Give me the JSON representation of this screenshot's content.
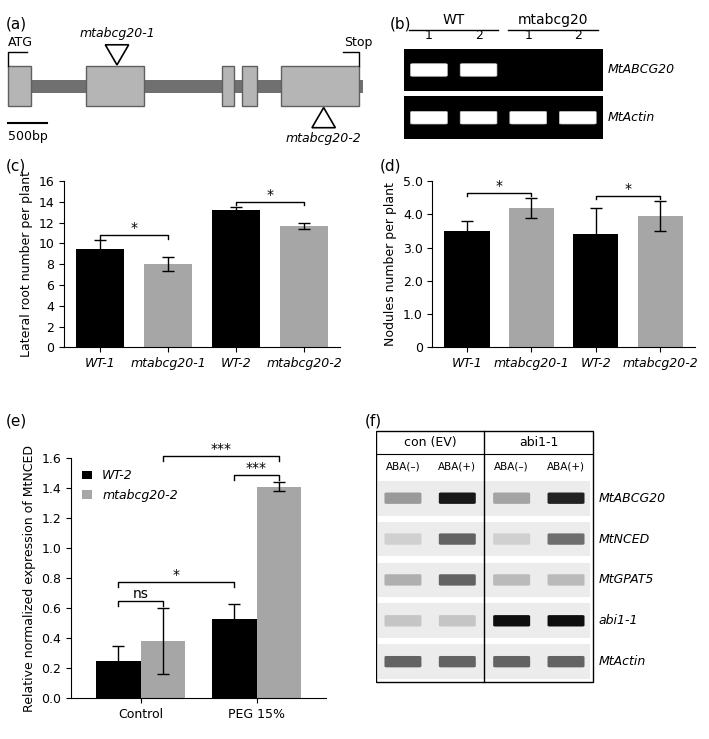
{
  "gene_diagram": {
    "label": "(a)",
    "start": "ATG",
    "end": "Stop",
    "scale_bar": "500bp",
    "insertions": [
      {
        "name": "mtabcg20-1",
        "side": "top"
      },
      {
        "name": "mtabcg20-2",
        "side": "bottom"
      }
    ]
  },
  "gel_b": {
    "label": "(b)",
    "groups": [
      {
        "name": "WT",
        "lanes": [
          "1",
          "2"
        ]
      },
      {
        "name": "mtabcg20",
        "lanes": [
          "1",
          "2"
        ]
      }
    ],
    "rows": [
      {
        "name": "MtABCG20",
        "bands": [
          true,
          true,
          false,
          false
        ]
      },
      {
        "name": "MtActin",
        "bands": [
          true,
          true,
          true,
          true
        ]
      }
    ]
  },
  "chart_data": [
    {
      "label": "(c)",
      "type": "bar",
      "categories": [
        "WT-1",
        "mtabcg20-1",
        "WT-2",
        "mtabcg20-2"
      ],
      "values": [
        9.5,
        8.0,
        13.2,
        11.7
      ],
      "errors": [
        0.8,
        0.7,
        0.3,
        0.3
      ],
      "colors": [
        "#000000",
        "#a6a6a6",
        "#000000",
        "#a6a6a6"
      ],
      "y_label": "Lateral root number per plant",
      "ylim": [
        0,
        16
      ],
      "yticks": [
        0,
        2,
        4,
        6,
        8,
        10,
        12,
        14,
        16
      ],
      "significance": [
        {
          "between": [
            "WT-1",
            "mtabcg20-1"
          ],
          "label": "*"
        },
        {
          "between": [
            "WT-2",
            "mtabcg20-2"
          ],
          "label": "*"
        }
      ]
    },
    {
      "label": "(d)",
      "type": "bar",
      "categories": [
        "WT-1",
        "mtabcg20-1",
        "WT-2",
        "mtabcg20-2"
      ],
      "values": [
        3.5,
        4.2,
        3.4,
        3.95
      ],
      "errors": [
        0.3,
        0.3,
        0.8,
        0.45
      ],
      "colors": [
        "#000000",
        "#a6a6a6",
        "#000000",
        "#a6a6a6"
      ],
      "y_label": "Nodules number per plant",
      "ylim": [
        0,
        5.0
      ],
      "yticks": [
        0,
        1.0,
        2.0,
        3.0,
        4.0,
        5.0
      ],
      "significance": [
        {
          "between": [
            "WT-1",
            "mtabcg20-1"
          ],
          "label": "*"
        },
        {
          "between": [
            "WT-2",
            "mtabcg20-2"
          ],
          "label": "*"
        }
      ]
    },
    {
      "label": "(e)",
      "type": "grouped_bar",
      "categories": [
        "Control",
        "PEG 15%"
      ],
      "series": [
        {
          "name": "WT-2",
          "color": "#000000",
          "values": [
            0.25,
            0.53
          ],
          "errors": [
            0.1,
            0.1
          ]
        },
        {
          "name": "mtabcg20-2",
          "color": "#a6a6a6",
          "values": [
            0.38,
            1.41
          ],
          "errors": [
            0.22,
            0.03
          ]
        }
      ],
      "y_label": "Relative normalized expression of MtNCED",
      "ylim": [
        0.0,
        1.6
      ],
      "yticks": [
        0.0,
        0.2,
        0.4,
        0.6,
        0.8,
        1.0,
        1.2,
        1.4,
        1.6
      ],
      "legend": "upper left",
      "significance": [
        {
          "between": [
            {
              "category": "Control",
              "series": "WT-2"
            },
            {
              "category": "Control",
              "series": "mtabcg20-2"
            }
          ],
          "label": "ns"
        },
        {
          "between": [
            {
              "category": "PEG 15%",
              "series": "WT-2"
            },
            {
              "category": "PEG 15%",
              "series": "mtabcg20-2"
            }
          ],
          "label": "***"
        },
        {
          "between": [
            {
              "category": "Control",
              "series": "WT-2"
            },
            {
              "category": "PEG 15%",
              "series": "WT-2"
            }
          ],
          "label": "*"
        },
        {
          "between": [
            {
              "category": "Control",
              "series": "mtabcg20-2"
            },
            {
              "category": "PEG 15%",
              "series": "mtabcg20-2"
            }
          ],
          "label": "***"
        }
      ]
    }
  ],
  "gel_f": {
    "label": "(f)",
    "groups": [
      {
        "name": "con (EV)",
        "lanes": [
          "ABA(–)",
          "ABA(+)"
        ]
      },
      {
        "name": "abi1-1",
        "lanes": [
          "ABA(–)",
          "ABA(+)"
        ]
      }
    ],
    "rows": [
      {
        "name": "MtABCG20",
        "band_intensity": [
          0.35,
          0.95,
          0.3,
          0.9
        ]
      },
      {
        "name": "MtNCED",
        "band_intensity": [
          0.1,
          0.6,
          0.1,
          0.55
        ]
      },
      {
        "name": "MtGPAT5",
        "band_intensity": [
          0.25,
          0.6,
          0.2,
          0.2
        ]
      },
      {
        "name": "abi1-1",
        "band_intensity": [
          0.15,
          0.15,
          1.0,
          1.0
        ]
      },
      {
        "name": "MtActin",
        "band_intensity": [
          0.6,
          0.6,
          0.6,
          0.6
        ]
      }
    ]
  }
}
